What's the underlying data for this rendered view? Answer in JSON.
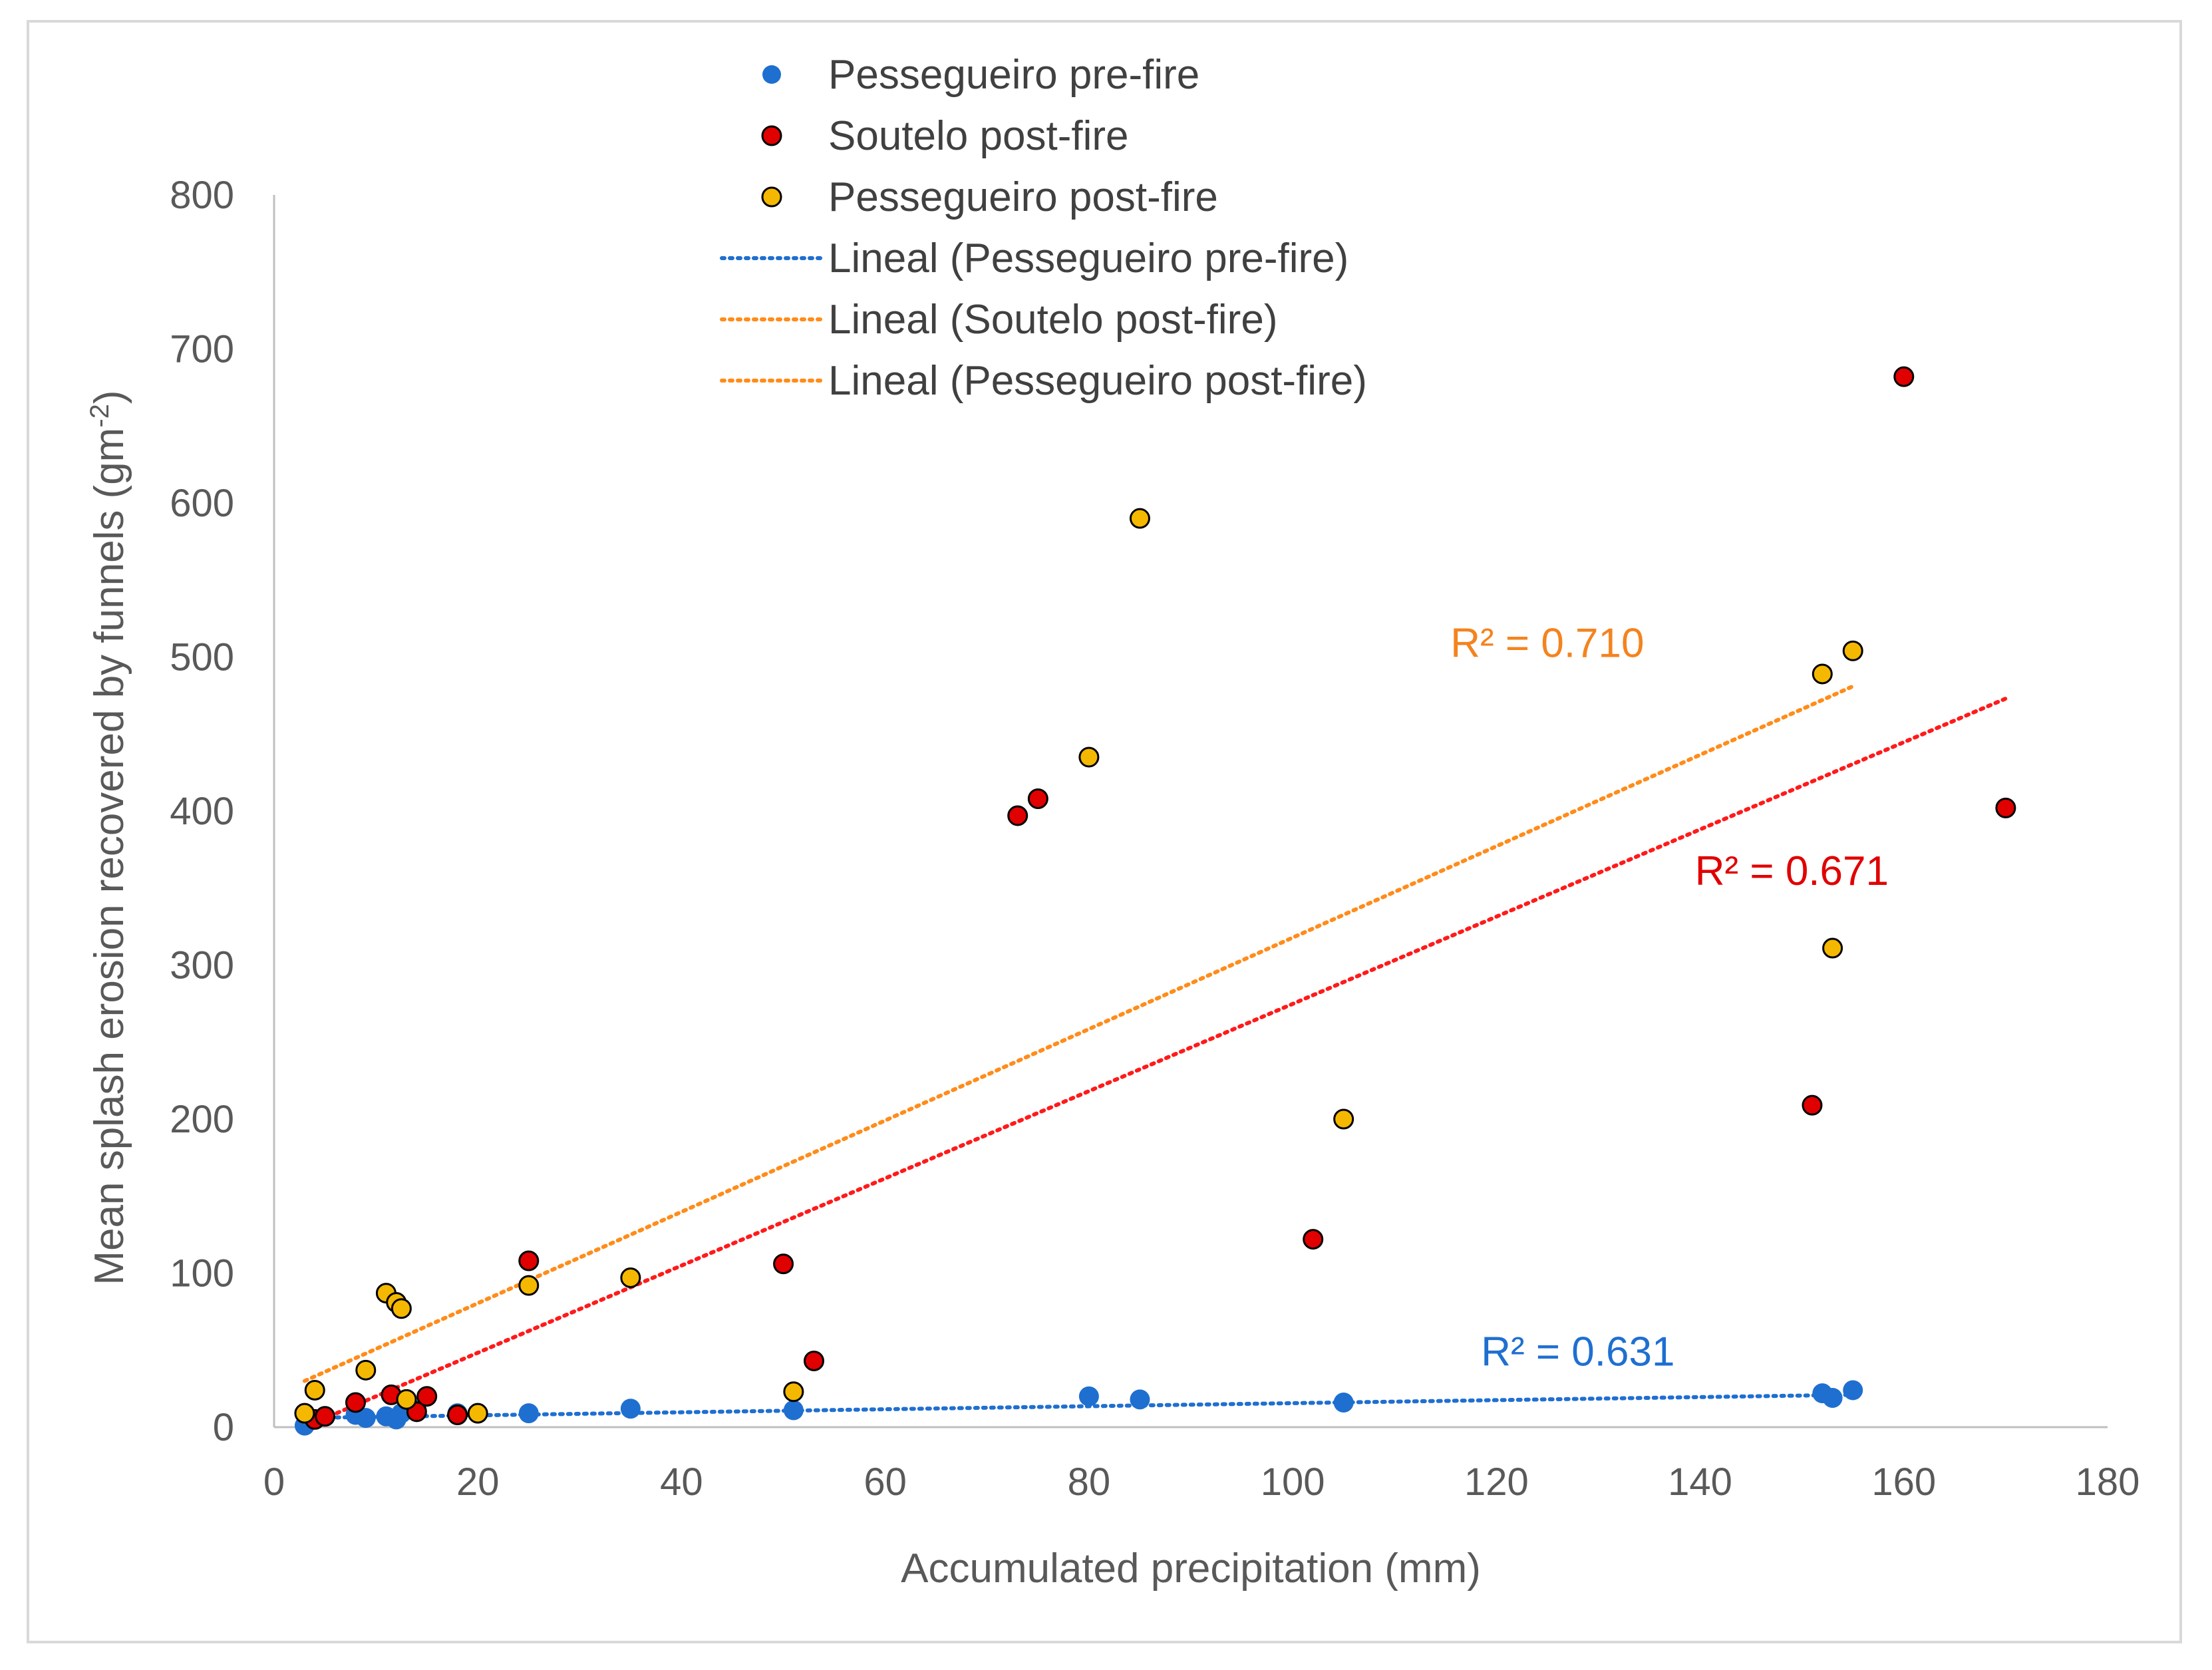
{
  "chart_data": {
    "type": "scatter",
    "title": "",
    "xlabel": "Accumulated precipitation (mm)",
    "ylabel_main": "Mean splash erosion recovered by funnels (gm",
    "ylabel_sup": "-2",
    "ylabel_end": ")",
    "xlim": [
      0,
      180
    ],
    "ylim": [
      0,
      800
    ],
    "xticks": [
      0,
      20,
      40,
      60,
      80,
      100,
      120,
      140,
      160,
      180
    ],
    "yticks": [
      0,
      100,
      200,
      300,
      400,
      500,
      600,
      700,
      800
    ],
    "grid": false,
    "legend_position": "top-center",
    "colors": {
      "pre": "#1f6fd0",
      "soutelo": "#e00000",
      "post": "#f5b800",
      "trend_pre": "#1f6fd0",
      "trend_soutelo": "#ff1a1a",
      "trend_post": "#ff8c1a",
      "r2_pre": "#1f6fd0",
      "r2_soutelo": "#e00000",
      "r2_post": "#f4831f",
      "axis": "#bfbfbf"
    },
    "series": [
      {
        "name": "Pessegueiro pre-fire",
        "key": "pre",
        "points": [
          [
            3,
            1
          ],
          [
            8,
            8
          ],
          [
            9,
            6
          ],
          [
            11,
            7
          ],
          [
            12,
            5
          ],
          [
            12.5,
            9
          ],
          [
            14,
            11
          ],
          [
            18,
            9
          ],
          [
            25,
            9
          ],
          [
            35,
            12
          ],
          [
            51,
            11
          ],
          [
            80,
            20
          ],
          [
            85,
            18
          ],
          [
            105,
            16
          ],
          [
            152,
            22
          ],
          [
            153,
            19
          ],
          [
            155,
            24
          ]
        ]
      },
      {
        "name": "Soutelo post-fire",
        "key": "soutelo",
        "points": [
          [
            4,
            5
          ],
          [
            5,
            7
          ],
          [
            8,
            16
          ],
          [
            11.5,
            21
          ],
          [
            14,
            10
          ],
          [
            15,
            20
          ],
          [
            18,
            8
          ],
          [
            25,
            108
          ],
          [
            50,
            106
          ],
          [
            53,
            43
          ],
          [
            73,
            397
          ],
          [
            75,
            408
          ],
          [
            102,
            122
          ],
          [
            151,
            209
          ],
          [
            160,
            682
          ],
          [
            170,
            402
          ]
        ]
      },
      {
        "name": "Pessegueiro post-fire",
        "key": "post",
        "points": [
          [
            3,
            9
          ],
          [
            4,
            24
          ],
          [
            9,
            37
          ],
          [
            11,
            87
          ],
          [
            12,
            81
          ],
          [
            12.5,
            77
          ],
          [
            13,
            18
          ],
          [
            20,
            9
          ],
          [
            25,
            92
          ],
          [
            35,
            97
          ],
          [
            51,
            23
          ],
          [
            80,
            435
          ],
          [
            85,
            590
          ],
          [
            105,
            200
          ],
          [
            152,
            489
          ],
          [
            153,
            311
          ],
          [
            155,
            504
          ]
        ]
      }
    ],
    "trendlines": [
      {
        "name": "Lineal (Pessegueiro pre-fire)",
        "key": "trend_pre",
        "x": [
          3,
          155
        ],
        "y": [
          6,
          21
        ],
        "r2": "R² = 0.631",
        "r2_at": [
          128,
          40
        ]
      },
      {
        "name": "Lineal (Soutelo post-fire)",
        "key": "trend_post",
        "x": [
          3,
          155
        ],
        "y": [
          30,
          481
        ],
        "r2": "R² = 0.710",
        "r2_at": [
          125,
          500
        ]
      },
      {
        "name": "Lineal (Pessegueiro post-fire)",
        "key": "trend_soutelo",
        "x": [
          4,
          170
        ],
        "y": [
          3,
          473
        ],
        "r2": "R² = 0.671",
        "r2_at": [
          149,
          352
        ]
      }
    ]
  },
  "legend": {
    "items": [
      {
        "label": "Pessegueiro pre-fire",
        "kind": "dot-nobord",
        "color": "#1f6fd0"
      },
      {
        "label": "Soutelo post-fire",
        "kind": "dot",
        "color": "#e00000"
      },
      {
        "label": "Pessegueiro post-fire",
        "kind": "dot",
        "color": "#f5b800"
      },
      {
        "label": "Lineal (Pessegueiro pre-fire)",
        "kind": "line",
        "color": "#1f6fd0"
      },
      {
        "label": "Lineal (Soutelo post-fire)",
        "kind": "line",
        "color": "#ff8c1a"
      },
      {
        "label": "Lineal (Pessegueiro post-fire)",
        "kind": "line",
        "color": "#ff8c1a"
      }
    ]
  }
}
